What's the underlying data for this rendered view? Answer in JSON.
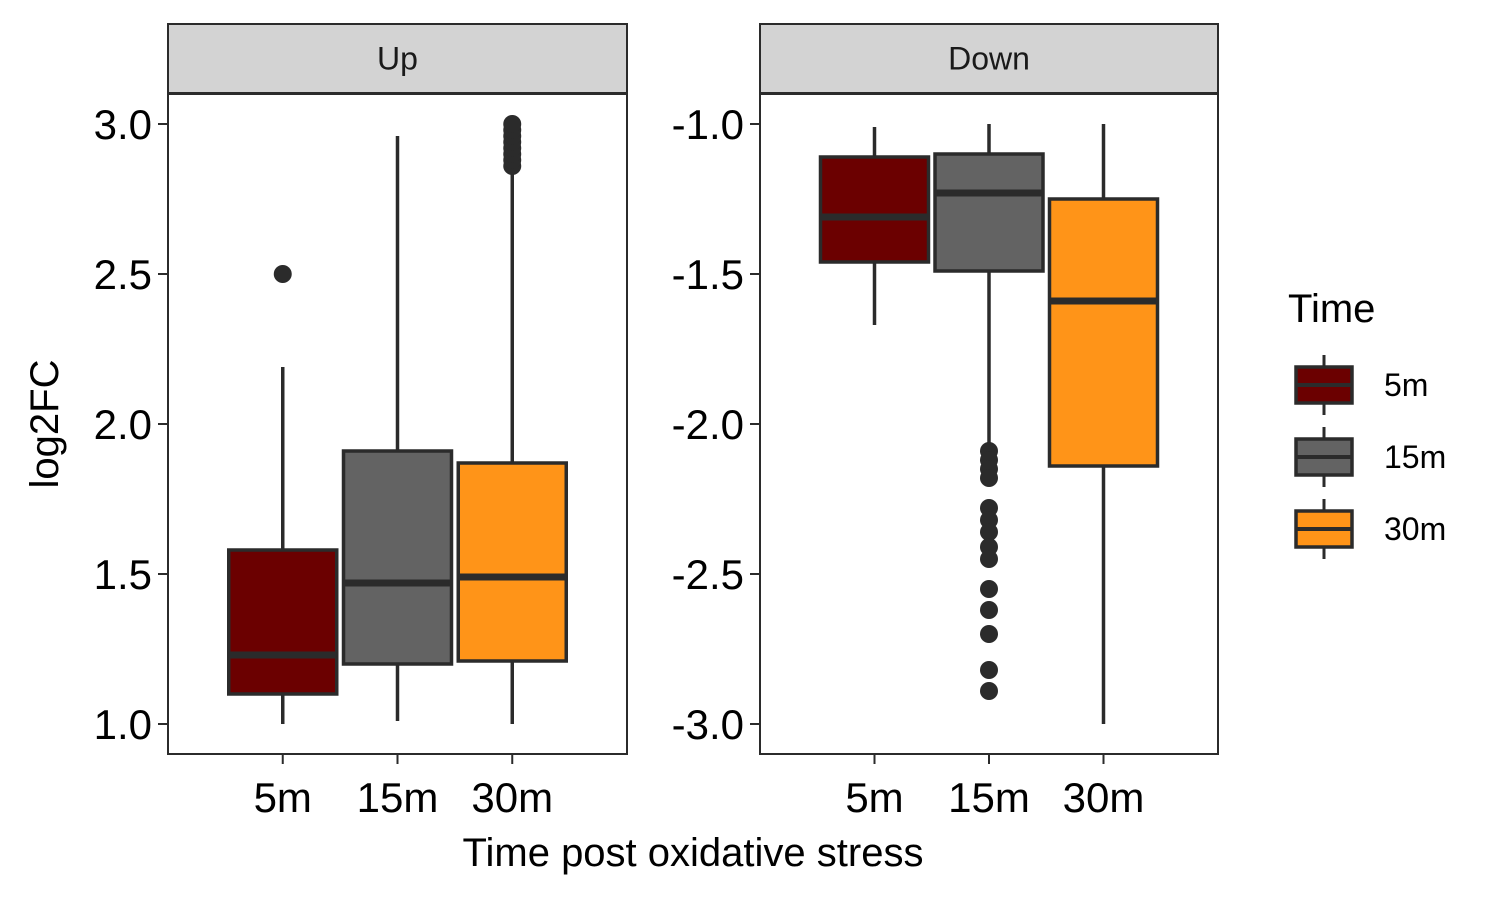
{
  "chart_data": {
    "type": "boxplot",
    "xlabel": "Time post oxidative stress",
    "ylabel": "log2FC",
    "categories": [
      "5m",
      "15m",
      "30m"
    ],
    "fill_colors": {
      "5m": "#6b0000",
      "15m": "#636363",
      "30m": "#ff9418"
    },
    "outline_color": "#2b2b2b",
    "strip_fill": "#d3d3d3",
    "grid": false,
    "legend": {
      "title": "Time",
      "placement": "right",
      "items": [
        "5m",
        "15m",
        "30m"
      ]
    },
    "facets": [
      {
        "name": "Up",
        "ylim": [
          0.9,
          3.1
        ],
        "yticks": [
          1.0,
          1.5,
          2.0,
          2.5,
          3.0
        ],
        "ytick_labels": [
          "1.0",
          "1.5",
          "2.0",
          "2.5",
          "3.0"
        ],
        "boxes": [
          {
            "category": "5m",
            "whisker_low": 1.0,
            "q1": 1.1,
            "median": 1.23,
            "q3": 1.58,
            "whisker_high": 2.19,
            "outliers": [
              2.5
            ]
          },
          {
            "category": "15m",
            "whisker_low": 1.01,
            "q1": 1.2,
            "median": 1.47,
            "q3": 1.91,
            "whisker_high": 2.96,
            "outliers": []
          },
          {
            "category": "30m",
            "whisker_low": 1.0,
            "q1": 1.21,
            "median": 1.49,
            "q3": 1.87,
            "whisker_high": 2.85,
            "outliers": [
              2.86,
              2.88,
              2.9,
              2.92,
              2.94,
              2.96,
              2.98,
              3.0
            ]
          }
        ]
      },
      {
        "name": "Down",
        "ylim": [
          -3.1,
          -0.9
        ],
        "yticks": [
          -3.0,
          -2.5,
          -2.0,
          -1.5,
          -1.0
        ],
        "ytick_labels": [
          "-3.0",
          "-2.5",
          "-2.0",
          "-1.5",
          "-1.0"
        ],
        "boxes": [
          {
            "category": "5m",
            "whisker_low": -1.67,
            "q1": -1.46,
            "median": -1.31,
            "q3": -1.11,
            "whisker_high": -1.01,
            "outliers": []
          },
          {
            "category": "15m",
            "whisker_low": -2.08,
            "q1": -1.49,
            "median": -1.23,
            "q3": -1.1,
            "whisker_high": -1.0,
            "outliers": [
              -2.09,
              -2.12,
              -2.15,
              -2.18,
              -2.28,
              -2.32,
              -2.36,
              -2.41,
              -2.45,
              -2.55,
              -2.62,
              -2.7,
              -2.82,
              -2.89
            ]
          },
          {
            "category": "30m",
            "whisker_low": -3.0,
            "q1": -2.14,
            "median": -1.59,
            "q3": -1.25,
            "whisker_high": -1.0,
            "outliers": []
          }
        ]
      }
    ]
  }
}
